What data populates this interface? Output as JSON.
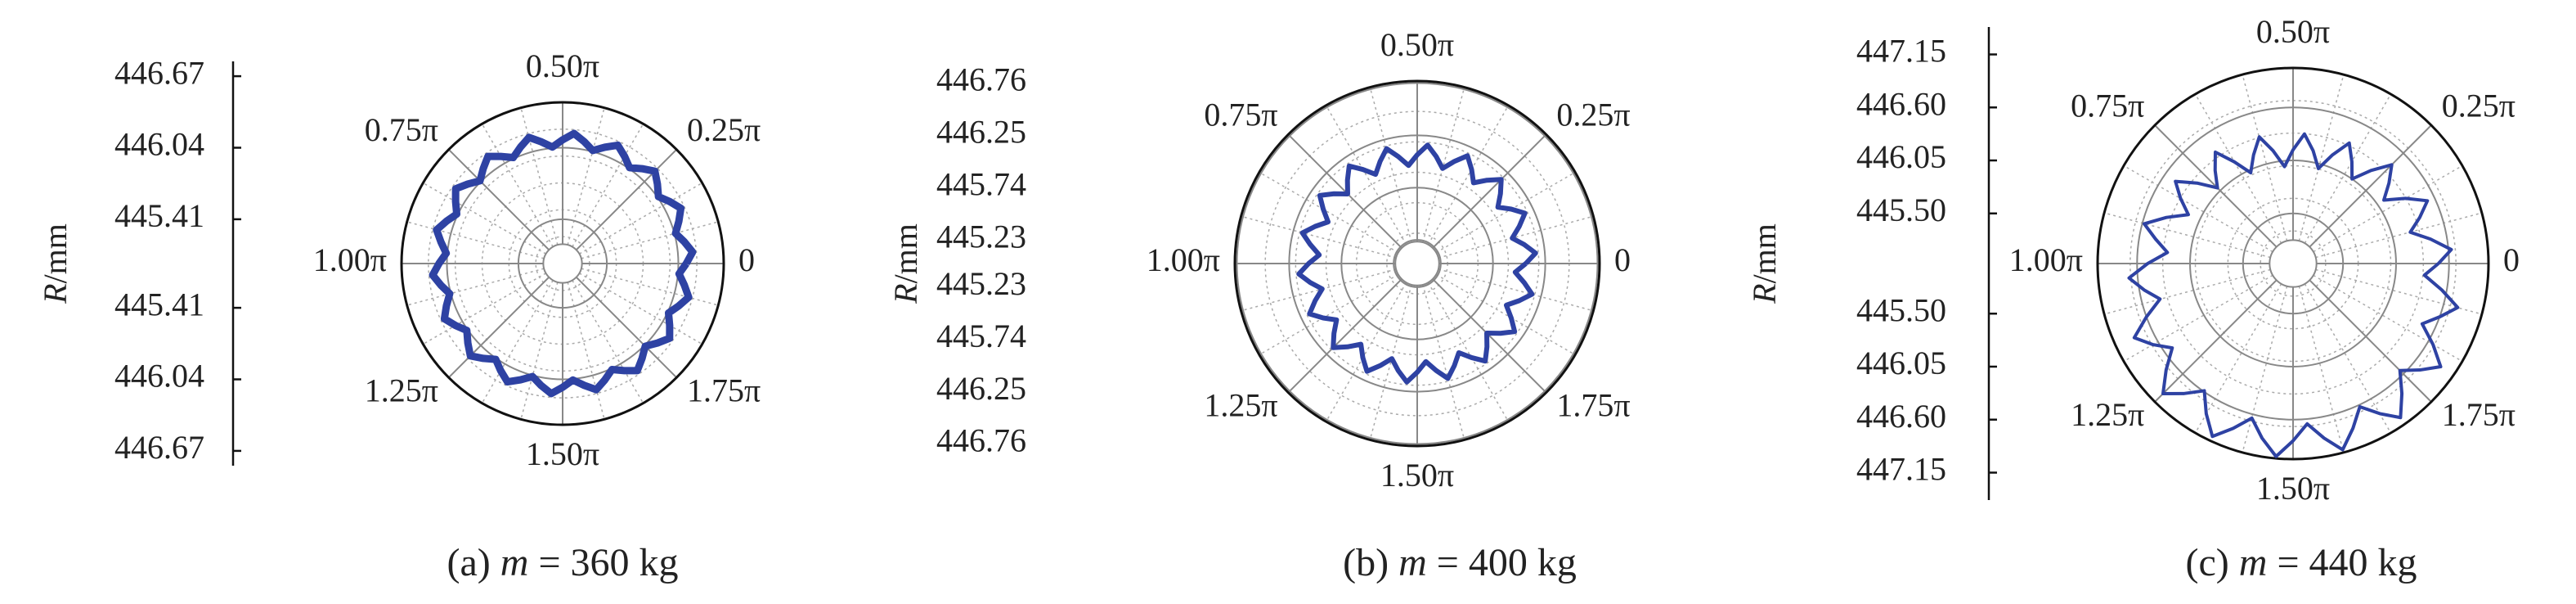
{
  "chart_data": [
    {
      "type": "polar",
      "caption_parts": [
        "(a)",
        "m",
        "= 360 kg"
      ],
      "ylabel_parts": [
        "R",
        "/mm"
      ],
      "xlim": [
        0,
        2
      ],
      "xticks": [
        0,
        {
          "value": 0.25,
          "label": "0.25π"
        },
        {
          "value": 0.5,
          "label": "0.50π"
        },
        {
          "value": 0.75,
          "label": "0.75π"
        },
        {
          "value": 1,
          "label": "1.00π"
        },
        {
          "value": 1.25,
          "label": "1.25π"
        },
        {
          "value": 1.5,
          "label": "1.50π"
        },
        {
          "value": 1.75,
          "label": "1.75π"
        }
      ],
      "ylim": [
        445.02,
        446.44
      ],
      "yticks": [
        445.41,
        446.04,
        446.67
      ],
      "x": [
        0,
        0.028,
        0.056,
        0.083,
        0.111,
        0.139,
        0.167,
        0.194,
        0.222,
        0.25,
        0.278,
        0.306,
        0.333,
        0.361,
        0.389,
        0.417,
        0.444,
        0.472,
        0.5,
        0.528,
        0.556,
        0.583,
        0.611,
        0.639,
        0.667,
        0.694,
        0.722,
        0.75,
        0.778,
        0.806,
        0.833,
        0.861,
        0.889,
        0.917,
        0.944,
        0.972,
        1,
        1.028,
        1.056,
        1.083,
        1.111,
        1.139,
        1.167,
        1.194,
        1.222,
        1.25,
        1.278,
        1.306,
        1.333,
        1.361,
        1.389,
        1.417,
        1.444,
        1.472,
        1.5,
        1.528,
        1.556,
        1.583,
        1.611,
        1.639,
        1.667,
        1.694,
        1.722,
        1.75,
        1.778,
        1.806,
        1.833,
        1.861,
        1.889,
        1.917,
        1.944,
        1.972,
        2
      ],
      "series": [
        {
          "color": "#2e42a3",
          "values": [
            446.11,
            446.17,
            446.11,
            446.05,
            446.11,
            446.17,
            446.11,
            446.05,
            446.11,
            446.17,
            446.11,
            446.05,
            446.11,
            446.17,
            446.11,
            446.05,
            446.11,
            446.17,
            446.11,
            446.05,
            446.11,
            446.17,
            446.11,
            446.05,
            446.11,
            446.17,
            446.11,
            446.05,
            446.11,
            446.17,
            446.11,
            446.05,
            446.11,
            446.17,
            446.11,
            446.05,
            446.11,
            446.17,
            446.11,
            446.05,
            446.11,
            446.17,
            446.11,
            446.05,
            446.11,
            446.17,
            446.11,
            446.05,
            446.11,
            446.17,
            446.11,
            446.05,
            446.11,
            446.17,
            446.11,
            446.05,
            446.11,
            446.17,
            446.11,
            446.05,
            446.11,
            446.17,
            446.11,
            446.05,
            446.11,
            446.17,
            446.11,
            446.05,
            446.11,
            446.17,
            446.11,
            446.05,
            446.11
          ]
        }
      ]
    },
    {
      "type": "polar",
      "caption_parts": [
        "(b)",
        "m",
        "= 400 kg"
      ],
      "ylabel_parts": [
        "R",
        "/mm"
      ],
      "xlim": [
        0,
        2
      ],
      "xticks": [
        0,
        {
          "value": 0.25,
          "label": "0.25π"
        },
        {
          "value": 0.5,
          "label": "0.50π"
        },
        {
          "value": 0.75,
          "label": "0.75π"
        },
        {
          "value": 1,
          "label": "1.00π"
        },
        {
          "value": 1.25,
          "label": "1.25π"
        },
        {
          "value": 1.5,
          "label": "1.50π"
        },
        {
          "value": 1.75,
          "label": "1.75π"
        }
      ],
      "ylim": [
        445.0,
        446.78
      ],
      "yticks": [
        445.23,
        445.74,
        446.25,
        446.76
      ],
      "x": [
        0,
        0.028,
        0.056,
        0.083,
        0.111,
        0.139,
        0.167,
        0.194,
        0.222,
        0.25,
        0.278,
        0.306,
        0.333,
        0.361,
        0.389,
        0.417,
        0.444,
        0.472,
        0.5,
        0.528,
        0.556,
        0.583,
        0.611,
        0.639,
        0.667,
        0.694,
        0.722,
        0.75,
        0.778,
        0.806,
        0.833,
        0.861,
        0.889,
        0.917,
        0.944,
        0.972,
        1,
        1.028,
        1.056,
        1.083,
        1.111,
        1.139,
        1.167,
        1.194,
        1.222,
        1.25,
        1.278,
        1.306,
        1.333,
        1.361,
        1.389,
        1.417,
        1.444,
        1.472,
        1.5,
        1.528,
        1.556,
        1.583,
        1.611,
        1.639,
        1.667,
        1.694,
        1.722,
        1.75,
        1.778,
        1.806,
        1.833,
        1.861,
        1.889,
        1.917,
        1.944,
        1.972,
        2
      ],
      "series": [
        {
          "color": "#2e42a3",
          "values": [
            446.06,
            446.16,
            446.06,
            445.96,
            446.06,
            446.16,
            446.06,
            445.96,
            446.06,
            446.16,
            446.06,
            445.96,
            446.06,
            446.16,
            446.06,
            445.96,
            446.06,
            446.16,
            446.06,
            445.96,
            446.06,
            446.16,
            446.06,
            445.96,
            446.06,
            446.16,
            446.06,
            445.96,
            446.06,
            446.16,
            446.06,
            445.96,
            446.06,
            446.16,
            446.06,
            445.96,
            446.06,
            446.16,
            446.06,
            445.96,
            446.06,
            446.16,
            446.06,
            445.96,
            446.06,
            446.16,
            446.06,
            445.96,
            446.06,
            446.16,
            446.06,
            445.96,
            446.06,
            446.16,
            446.06,
            445.96,
            446.06,
            446.16,
            446.06,
            445.96,
            446.06,
            446.16,
            446.06,
            445.96,
            446.06,
            446.16,
            446.06,
            445.96,
            446.06,
            446.16,
            446.06,
            445.96,
            446.06
          ]
        }
      ]
    },
    {
      "type": "polar",
      "caption_parts": [
        "(c)",
        "m",
        "= 440 kg"
      ],
      "ylabel_parts": [
        "R",
        "/mm"
      ],
      "xlim": [
        0,
        2
      ],
      "xticks": [
        0,
        {
          "value": 0.25,
          "label": "0.25π"
        },
        {
          "value": 0.5,
          "label": "0.50π"
        },
        {
          "value": 0.75,
          "label": "0.75π"
        },
        {
          "value": 1,
          "label": "1.00π"
        },
        {
          "value": 1.25,
          "label": "1.25π"
        },
        {
          "value": 1.5,
          "label": "1.50π"
        },
        {
          "value": 1.75,
          "label": "1.75π"
        }
      ],
      "ylim": [
        444.98,
        447.01
      ],
      "yticks": [
        {
          "value": 445.5,
          "label": "445.50"
        },
        {
          "value": 446.05,
          "label": "446.05"
        },
        {
          "value": 446.6,
          "label": "446.60"
        },
        {
          "value": 447.15,
          "label": "447.15"
        }
      ],
      "x": [
        0,
        0.028,
        0.056,
        0.083,
        0.111,
        0.139,
        0.167,
        0.194,
        0.222,
        0.25,
        0.278,
        0.306,
        0.333,
        0.361,
        0.389,
        0.417,
        0.444,
        0.472,
        0.5,
        0.528,
        0.556,
        0.583,
        0.611,
        0.639,
        0.667,
        0.694,
        0.722,
        0.75,
        0.778,
        0.806,
        0.833,
        0.861,
        0.889,
        0.917,
        0.944,
        0.972,
        1,
        1.028,
        1.056,
        1.083,
        1.111,
        1.139,
        1.167,
        1.194,
        1.222,
        1.25,
        1.278,
        1.306,
        1.333,
        1.361,
        1.389,
        1.417,
        1.444,
        1.472,
        1.5,
        1.528,
        1.556,
        1.583,
        1.611,
        1.639,
        1.667,
        1.694,
        1.722,
        1.75,
        1.778,
        1.806,
        1.833,
        1.861,
        1.889,
        1.917,
        1.944,
        1.972,
        2
      ],
      "series": [
        {
          "color": "#2e42a3",
          "values": [
            446.49,
            446.63,
            446.43,
            446.24,
            446.38,
            446.52,
            446.33,
            446.13,
            446.28,
            446.43,
            446.24,
            446.05,
            446.2,
            446.36,
            446.18,
            446.0,
            446.17,
            446.33,
            446.16,
            445.99,
            446.17,
            446.34,
            446.18,
            446.02,
            446.2,
            446.39,
            446.24,
            446.09,
            446.28,
            446.47,
            446.33,
            446.18,
            446.38,
            446.58,
            446.43,
            446.29,
            446.49,
            446.69,
            446.55,
            446.41,
            446.6,
            446.8,
            446.66,
            446.51,
            446.7,
            446.89,
            446.74,
            446.59,
            446.78,
            446.96,
            446.8,
            446.64,
            446.82,
            446.99,
            446.82,
            446.65,
            446.82,
            446.98,
            446.8,
            446.62,
            446.78,
            446.93,
            446.74,
            446.55,
            446.7,
            446.85,
            446.66,
            446.46,
            446.6,
            446.75,
            446.55,
            446.35,
            446.49
          ]
        }
      ]
    }
  ]
}
